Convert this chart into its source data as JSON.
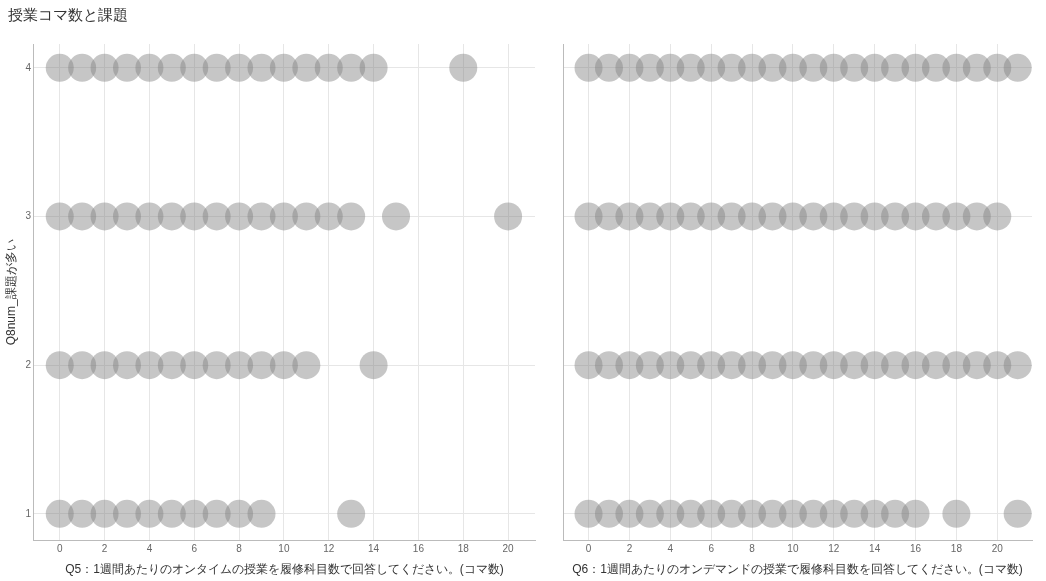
{
  "chart_data": [
    {
      "type": "scatter",
      "title": "授業コマ数と課題",
      "xlabel": "Q5：1週間あたりのオンタイムの授業を履修科目数で回答してください。(コマ数)",
      "ylabel": "Q8num_課題が多い",
      "xlim": [
        -1.15,
        21.2
      ],
      "xticks": [
        0,
        2,
        4,
        6,
        8,
        10,
        12,
        14,
        16,
        18,
        20
      ],
      "ylim": [
        0.82,
        4.16
      ],
      "yticks": [
        1,
        2,
        3,
        4
      ],
      "grid": true,
      "marker": "circle",
      "series": [
        {
          "color": "#808080",
          "x": [
            0,
            1,
            2,
            3,
            4,
            5,
            6,
            7,
            8,
            9,
            10,
            11,
            12,
            13,
            14,
            18
          ],
          "values": [
            4,
            4,
            4,
            4,
            4,
            4,
            4,
            4,
            4,
            4,
            4,
            4,
            4,
            4,
            4,
            4
          ]
        },
        {
          "color": "#808080",
          "x": [
            0,
            1,
            2,
            3,
            4,
            5,
            6,
            7,
            8,
            9,
            10,
            11,
            12,
            13,
            15,
            20
          ],
          "values": [
            3,
            3,
            3,
            3,
            3,
            3,
            3,
            3,
            3,
            3,
            3,
            3,
            3,
            3,
            3,
            3
          ]
        },
        {
          "color": "#808080",
          "x": [
            0,
            1,
            2,
            3,
            4,
            5,
            6,
            7,
            8,
            9,
            10,
            11,
            14
          ],
          "values": [
            2,
            2,
            2,
            2,
            2,
            2,
            2,
            2,
            2,
            2,
            2,
            2,
            2
          ]
        },
        {
          "color": "#808080",
          "x": [
            0,
            1,
            2,
            3,
            4,
            5,
            6,
            7,
            8,
            9,
            13
          ],
          "values": [
            1,
            1,
            1,
            1,
            1,
            1,
            1,
            1,
            1,
            1,
            1
          ]
        }
      ]
    },
    {
      "type": "scatter",
      "xlabel": "Q6：1週間あたりのオンデマンドの授業で履修科目数を回答してください。(コマ数)",
      "xlim": [
        -1.25,
        21.7
      ],
      "xticks": [
        0,
        2,
        4,
        6,
        8,
        10,
        12,
        14,
        16,
        18,
        20
      ],
      "ylim": [
        0.82,
        4.16
      ],
      "yticks": [
        1,
        2,
        3,
        4
      ],
      "tick_labels": "x",
      "grid": true,
      "marker": "circle",
      "series": [
        {
          "color": "#808080",
          "x": [
            0,
            1,
            2,
            3,
            4,
            5,
            6,
            7,
            8,
            9,
            10,
            11,
            12,
            13,
            14,
            15,
            16,
            17,
            18,
            19,
            20,
            21
          ],
          "values": [
            4,
            4,
            4,
            4,
            4,
            4,
            4,
            4,
            4,
            4,
            4,
            4,
            4,
            4,
            4,
            4,
            4,
            4,
            4,
            4,
            4,
            4
          ]
        },
        {
          "color": "#808080",
          "x": [
            0,
            1,
            2,
            3,
            4,
            5,
            6,
            7,
            8,
            9,
            10,
            11,
            12,
            13,
            14,
            15,
            16,
            17,
            18,
            19,
            20
          ],
          "values": [
            3,
            3,
            3,
            3,
            3,
            3,
            3,
            3,
            3,
            3,
            3,
            3,
            3,
            3,
            3,
            3,
            3,
            3,
            3,
            3,
            3
          ]
        },
        {
          "color": "#808080",
          "x": [
            0,
            1,
            2,
            3,
            4,
            5,
            6,
            7,
            8,
            9,
            10,
            11,
            12,
            13,
            14,
            15,
            16,
            17,
            18,
            19,
            20,
            21
          ],
          "values": [
            2,
            2,
            2,
            2,
            2,
            2,
            2,
            2,
            2,
            2,
            2,
            2,
            2,
            2,
            2,
            2,
            2,
            2,
            2,
            2,
            2,
            2
          ]
        },
        {
          "color": "#808080",
          "x": [
            0,
            1,
            2,
            3,
            4,
            5,
            6,
            7,
            8,
            9,
            10,
            11,
            12,
            13,
            14,
            15,
            16,
            18,
            21
          ],
          "values": [
            1,
            1,
            1,
            1,
            1,
            1,
            1,
            1,
            1,
            1,
            1,
            1,
            1,
            1,
            1,
            1,
            1,
            1,
            1
          ]
        }
      ]
    }
  ]
}
